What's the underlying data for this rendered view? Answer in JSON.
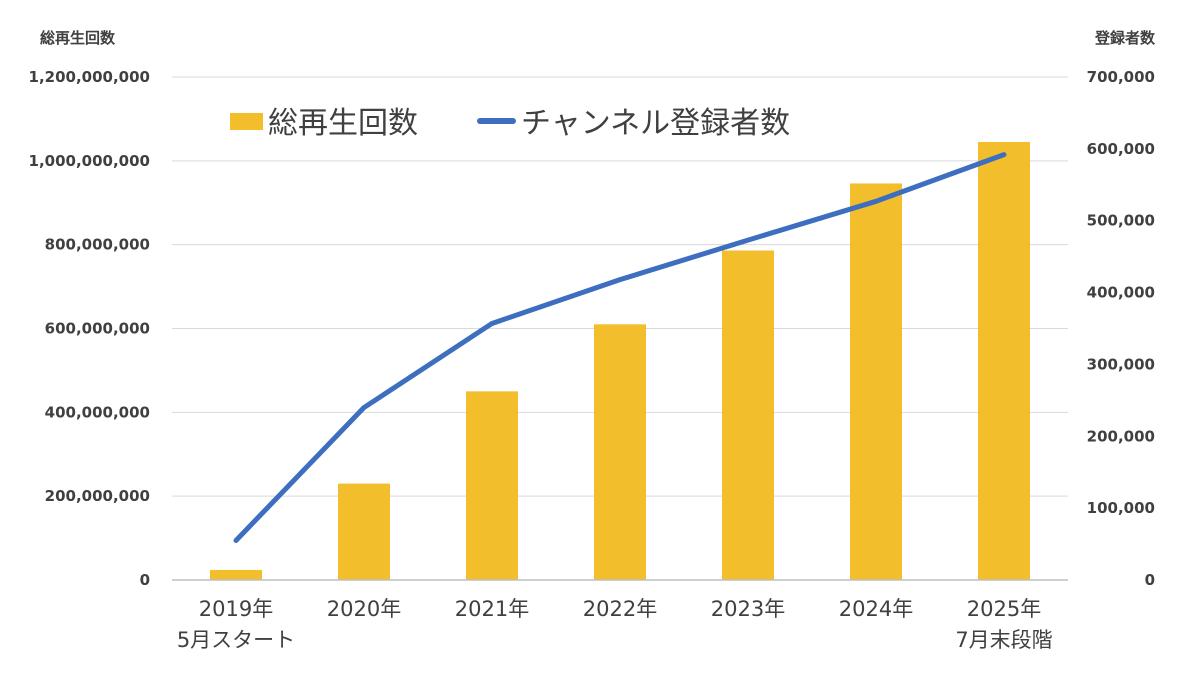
{
  "colors": {
    "bar": "#F2BE2C",
    "line": "#3E6EBF",
    "text": "#404040",
    "grid": "#D9D9D9"
  },
  "chart_data": {
    "type": "bar",
    "categories": [
      [
        "2019年",
        "5月スタート"
      ],
      [
        "2020年"
      ],
      [
        "2021年"
      ],
      [
        "2022年"
      ],
      [
        "2023年"
      ],
      [
        "2024年"
      ],
      [
        "2025年",
        "7月末段階"
      ]
    ],
    "series": [
      {
        "name": "総再生回数",
        "type": "bar",
        "axis": "left",
        "values": [
          24000000,
          230000000,
          450000000,
          610000000,
          786000000,
          946000000,
          1045000000
        ]
      },
      {
        "name": "チャンネル登録者数",
        "type": "line",
        "axis": "right",
        "values": [
          55000,
          240000,
          357000,
          418000,
          473000,
          527000,
          592000
        ]
      }
    ],
    "y_left": {
      "title": "総再生回数",
      "range": [
        0,
        1200000000
      ],
      "ticks": [
        "0",
        "200,000,000",
        "400,000,000",
        "600,000,000",
        "800,000,000",
        "1,000,000,000",
        "1,200,000,000"
      ]
    },
    "y_right": {
      "title": "登録者数",
      "range": [
        0,
        700000
      ],
      "ticks": [
        "0",
        "100,000",
        "200,000",
        "300,000",
        "400,000",
        "500,000",
        "600,000",
        "700,000"
      ]
    },
    "grid": true,
    "legend": "top-left"
  }
}
